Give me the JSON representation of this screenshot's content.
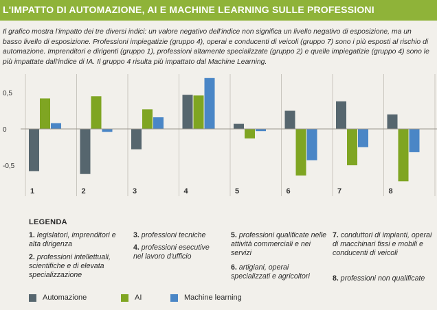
{
  "title": "L'IMPATTO DI AUTOMAZIONE, AI E MACHINE LEARNING SULLE PROFESSIONI",
  "description": "Il grafico mostra l'impatto dei tre diversi indici: un valore negativo dell'indice non significa un livello negativo di esposizione, ma un basso livello di esposizione. Professioni impiegatizie (gruppo 4), operai e conducenti di veicoli (gruppo 7) sono i più esposti al rischio di automazione. Imprenditori e dirigenti (gruppo 1), professioni altamente specializzate (gruppo 2) e quelle impiegatizie (gruppo 4) sono le più impattate dall'indice di IA. Il gruppo 4 risulta più impattato dal Machine Learning.",
  "colors": {
    "header": "#8fb339",
    "automazione": "#56666e",
    "ai": "#7fa522",
    "ml": "#4a86c6"
  },
  "chart_data": {
    "type": "bar",
    "categories": [
      "1",
      "2",
      "3",
      "4",
      "5",
      "6",
      "7",
      "8"
    ],
    "y_tick_labels": [
      "0,5",
      "0",
      "-0,5"
    ],
    "ylim": [
      -0.75,
      0.75
    ],
    "grid": "vertical separators between groups",
    "series": [
      {
        "name": "Automazione",
        "color": "#56666e",
        "values": [
          -0.58,
          -0.62,
          -0.28,
          0.47,
          0.07,
          0.25,
          0.38,
          0.2
        ]
      },
      {
        "name": "AI",
        "color": "#7fa522",
        "values": [
          0.42,
          0.45,
          0.27,
          0.46,
          -0.13,
          -0.64,
          -0.5,
          -0.72
        ]
      },
      {
        "name": "Machine learning",
        "color": "#4a86c6",
        "values": [
          0.08,
          -0.04,
          0.16,
          0.7,
          -0.03,
          -0.43,
          -0.25,
          -0.32
        ]
      }
    ]
  },
  "legend": {
    "title": "LEGENDA",
    "items": [
      {
        "num": "1.",
        "text": "legislatori, imprenditori e alta dirigenza"
      },
      {
        "num": "2.",
        "text": "professioni intellettuali, scientifiche e di elevata specializzazione"
      },
      {
        "num": "3.",
        "text": "professioni tecniche"
      },
      {
        "num": "4.",
        "text": "professioni esecutive nel lavoro d'ufficio"
      },
      {
        "num": "5.",
        "text": "professioni qualificate nelle attività commerciali e nei servizi"
      },
      {
        "num": "6.",
        "text": "artigiani, operai specializzati e agricoltori"
      },
      {
        "num": "7.",
        "text": "conduttori di impianti, operai di macchinari fissi e mobili e conducenti di veicoli"
      },
      {
        "num": "8.",
        "text": "professioni non qualificate"
      }
    ],
    "series_labels": [
      "Automazione",
      "AI",
      "Machine learning"
    ]
  }
}
